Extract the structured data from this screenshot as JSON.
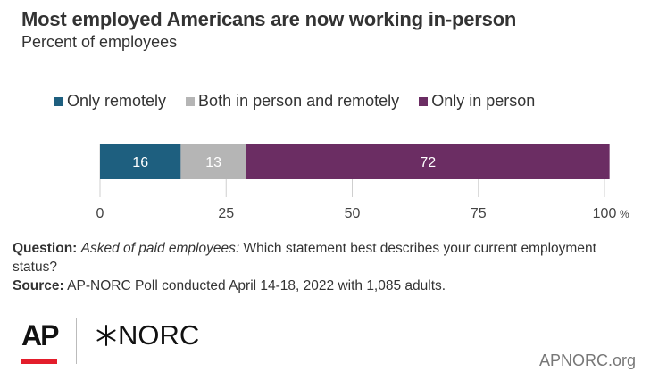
{
  "header": {
    "title": "Most employed Americans are now working in-person",
    "subtitle": "Percent of employees"
  },
  "chart_data": {
    "type": "bar",
    "orientation": "horizontal-stacked",
    "categories": [
      ""
    ],
    "series": [
      {
        "name": "Only remotely",
        "values": [
          16
        ],
        "color": "#1e5f7f"
      },
      {
        "name": "Both in person and remotely",
        "values": [
          13
        ],
        "color": "#b5b5b5"
      },
      {
        "name": "Only in person",
        "values": [
          72
        ],
        "color": "#6b2d63"
      }
    ],
    "data_labels": [
      "16",
      "13",
      "72"
    ],
    "xlim": [
      0,
      100
    ],
    "xticks": [
      0,
      25,
      50,
      75,
      100
    ],
    "xtick_labels": [
      "0",
      "25",
      "50",
      "75",
      "100"
    ],
    "x_unit": "%",
    "grid": true,
    "legend_position": "top"
  },
  "notes": {
    "question_label": "Question:",
    "question_italic": "Asked of paid employees:",
    "question_text": "Which statement best describes your current employment status?",
    "source_label": "Source:",
    "source_text": "AP-NORC Poll conducted April 14-18, 2022 with 1,085 adults."
  },
  "footer": {
    "ap_logo": "AP",
    "norc_logo": "NORC",
    "site": "APNORC.org"
  }
}
